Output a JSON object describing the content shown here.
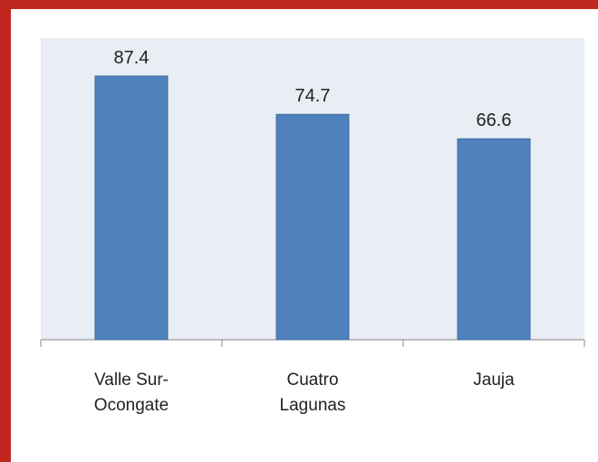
{
  "chart_data": {
    "type": "bar",
    "categories": [
      "Valle Sur-Ocongate",
      "Cuatro Lagunas",
      "Jauja"
    ],
    "values": [
      87.4,
      74.7,
      66.6
    ],
    "color": "#4f81bd",
    "ylim": [
      0,
      100
    ]
  }
}
